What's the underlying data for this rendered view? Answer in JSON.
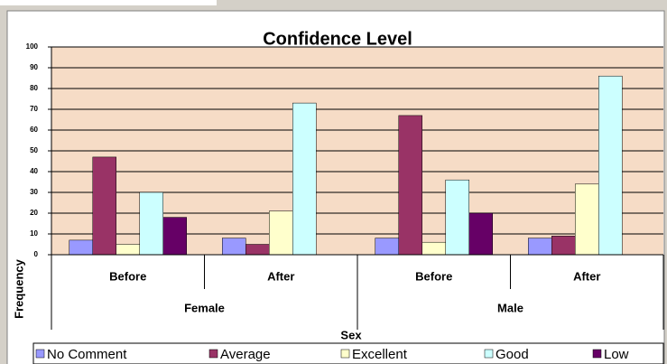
{
  "chart_data": {
    "type": "bar",
    "title": "Confidence Level",
    "xlabel": "Sex",
    "ylabel": "Frequency",
    "categories": [
      "Before",
      "After",
      "Before",
      "After"
    ],
    "groups": [
      "Female",
      "Male"
    ],
    "series": [
      {
        "name": "No Comment",
        "color": "#9999ff",
        "values": [
          7,
          8,
          8,
          8
        ]
      },
      {
        "name": "Average",
        "color": "#993366",
        "values": [
          47,
          5,
          67,
          9
        ]
      },
      {
        "name": "Excellent",
        "color": "#ffffcc",
        "values": [
          5,
          21,
          6,
          34
        ]
      },
      {
        "name": "Good",
        "color": "#ccffff",
        "values": [
          30,
          73,
          36,
          86
        ]
      },
      {
        "name": "Low",
        "color": "#660066",
        "values": [
          18,
          0,
          20,
          0
        ]
      }
    ],
    "ylim": [
      0,
      100
    ],
    "yticks": [
      0,
      10,
      20,
      30,
      40,
      50,
      60,
      70,
      80,
      90,
      100
    ],
    "grid": true,
    "legend": "bottom"
  }
}
